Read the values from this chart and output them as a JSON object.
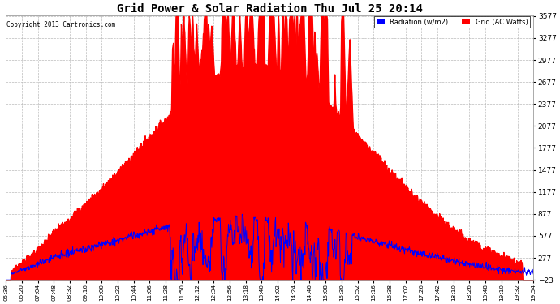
{
  "title": "Grid Power & Solar Radiation Thu Jul 25 20:14",
  "copyright": "Copyright 2013 Cartronics.com",
  "legend_radiation": "Radiation (w/m2)",
  "legend_grid": "Grid (AC Watts)",
  "yticks": [
    3576.8,
    3276.8,
    2976.8,
    2676.8,
    2376.8,
    2076.9,
    1776.9,
    1476.9,
    1176.9,
    876.9,
    577.0,
    277.0,
    -23.0
  ],
  "ymin": -23.0,
  "ymax": 3576.8,
  "bg_color": "#ffffff",
  "grid_color": "#bbbbbb",
  "radiation_color": "#ff0000",
  "grid_line_color": "#0000ff",
  "xtick_labels": [
    "05:36",
    "06:20",
    "07:04",
    "07:48",
    "08:32",
    "09:16",
    "10:00",
    "10:22",
    "10:44",
    "11:06",
    "11:28",
    "11:50",
    "12:12",
    "12:34",
    "12:56",
    "13:18",
    "13:40",
    "14:02",
    "14:24",
    "14:46",
    "15:08",
    "15:30",
    "15:52",
    "16:16",
    "16:38",
    "17:02",
    "17:26",
    "17:42",
    "18:10",
    "18:26",
    "18:48",
    "19:10",
    "19:32",
    "19:54"
  ]
}
